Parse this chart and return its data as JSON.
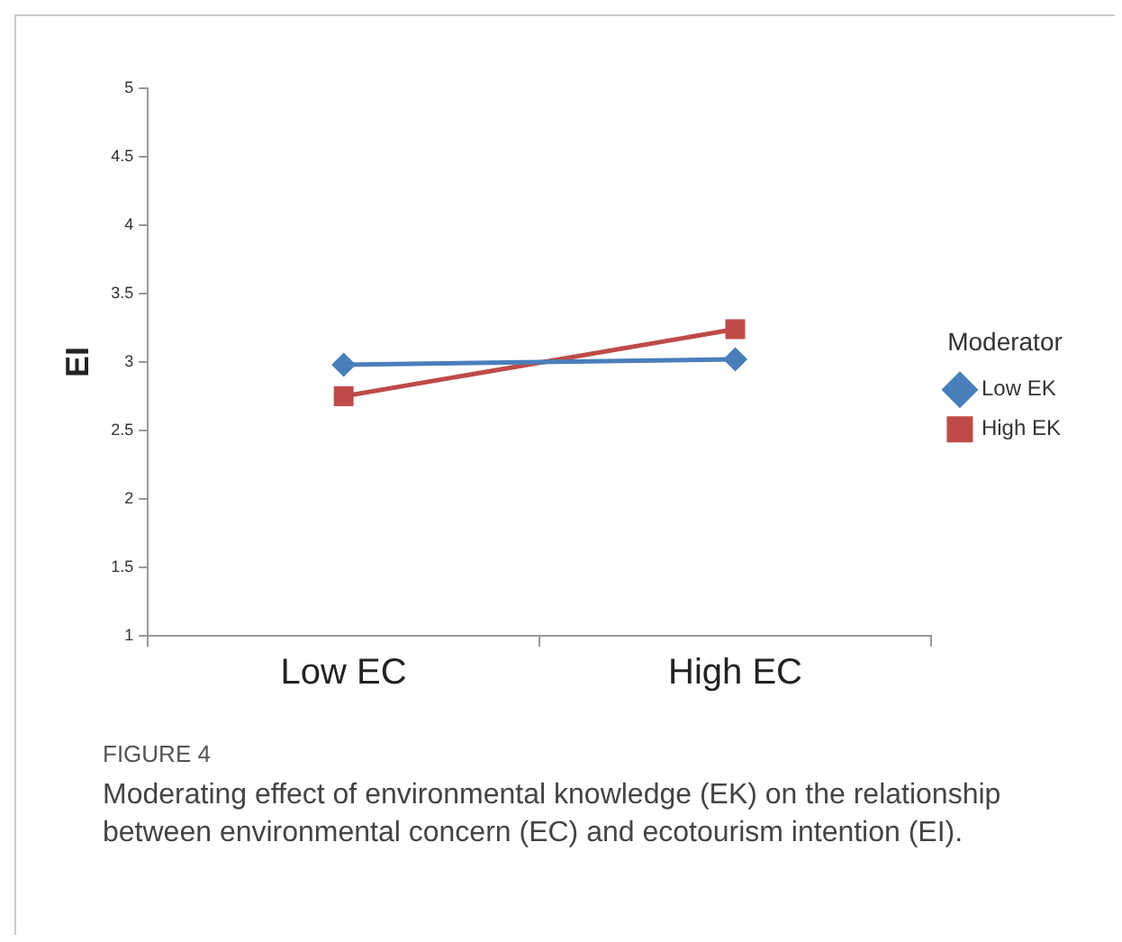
{
  "chart_data": {
    "type": "line",
    "title": "FIGURE 4",
    "subtitle": "Moderating effect of environmental knowledge (EK) on the relationship between environmental concern (EC) and ecotourism intention (EI).",
    "ylabel": "EI",
    "legend_title": "Moderator",
    "categories": [
      "Low EC",
      "High EC"
    ],
    "series": [
      {
        "name": "Low EK",
        "color": "#4a7ebb",
        "values": [
          2.98,
          3.02
        ],
        "marker": "diamond"
      },
      {
        "name": "High EK",
        "color": "#be4b48",
        "values": [
          2.75,
          3.24
        ],
        "marker": "square"
      }
    ],
    "ylim": [
      1,
      5
    ],
    "yticks": [
      1,
      1.5,
      2,
      2.5,
      3,
      3.5,
      4,
      4.5,
      5
    ],
    "grid": false,
    "legend": "right",
    "line_style": "solid"
  }
}
